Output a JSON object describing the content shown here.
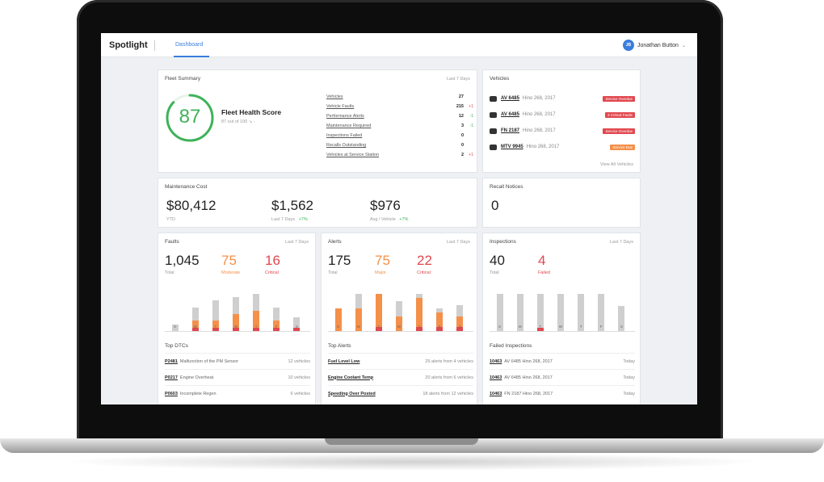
{
  "header": {
    "brand": "Spotlight",
    "tab_dashboard": "Dashboard",
    "user_initials": "JB",
    "user_name": "Jonathan Button"
  },
  "fleet_summary": {
    "title": "Fleet Summary",
    "period": "Last 7 Days",
    "score": "87",
    "score_fraction": 0.87,
    "score_title": "Fleet Health Score",
    "score_sub": "87 out of 100 ↘ -",
    "stats": [
      {
        "label": "Vehicles",
        "value": "27",
        "delta": ""
      },
      {
        "label": "Vehicle Faults",
        "value": "215",
        "delta": "+1"
      },
      {
        "label": "Performance Alerts",
        "value": "12",
        "delta": "-1"
      },
      {
        "label": "Maintenance Required",
        "value": "3",
        "delta": "-1"
      },
      {
        "label": "Inspections Failed",
        "value": "0",
        "delta": ""
      },
      {
        "label": "Recalls Outstanding",
        "value": "0",
        "delta": ""
      },
      {
        "label": "Vehicles at Service Station",
        "value": "2",
        "delta": "+1"
      }
    ]
  },
  "vehicles": {
    "title": "Vehicles",
    "view_all": "View All Vehicles",
    "items": [
      {
        "id": "AV 6485",
        "model": "Hino 268, 2017",
        "status": "Service Overdue",
        "color": "#e0484f"
      },
      {
        "id": "AV 6485",
        "model": "Hino 268, 2017",
        "status": "3 Critical Faults",
        "color": "#e0484f"
      },
      {
        "id": "FN 2187",
        "model": "Hino 268, 2017",
        "status": "Service Overdue",
        "color": "#e0484f"
      },
      {
        "id": "MTV 9945",
        "model": "Hino 268, 2017",
        "status": "Service Due",
        "color": "#f5904a"
      }
    ]
  },
  "maintenance": {
    "title": "Maintenance Cost",
    "ytd_value": "$80,412",
    "ytd_label": "YTD",
    "week_value": "$1,562",
    "week_label": "Last 7 Days",
    "week_delta": "+7%",
    "per_vehicle_value": "$976",
    "per_vehicle_label": "Avg / Vehicle",
    "per_vehicle_delta": "+7%"
  },
  "recalls": {
    "title": "Recall Notices",
    "value": "0"
  },
  "faults": {
    "title": "Faults",
    "period": "Last 7 Days",
    "total": "1,045",
    "total_label": "Total",
    "moderate": "75",
    "moderate_label": "Moderate",
    "critical": "16",
    "critical_label": "Critical",
    "list_title": "Top DTCs",
    "list": [
      {
        "code": "P2481",
        "desc": "Malfunction of the PM Sensor",
        "meta": "12 vehicles"
      },
      {
        "code": "P0217",
        "desc": "Engine Overheat",
        "meta": "10 vehicles"
      },
      {
        "code": "P0603",
        "desc": "Incomplete Regen",
        "meta": "6 vehicles"
      }
    ]
  },
  "alerts": {
    "title": "Alerts",
    "period": "Last 7 Days",
    "total": "175",
    "total_label": "Total",
    "major": "75",
    "major_label": "Major",
    "critical": "22",
    "critical_label": "Critical",
    "list_title": "Top Alerts",
    "list": [
      {
        "code": "Fuel Level Low",
        "desc": "",
        "meta": "25 alerts from 4 vehicles"
      },
      {
        "code": "Engine Coolant Temp",
        "desc": "",
        "meta": "20 alerts from 6 vehicles"
      },
      {
        "code": "Speeding Over Posted",
        "desc": "",
        "meta": "18 alerts from 12 vehicles"
      }
    ]
  },
  "inspections": {
    "title": "Inspections",
    "period": "Last 7 Days",
    "total": "40",
    "total_label": "Total",
    "failed": "4",
    "failed_label": "Failed",
    "list_title": "Failed Inspections",
    "list": [
      {
        "code": "10463",
        "desc": "AV 6485  Hino 268, 2017",
        "meta": "Today"
      },
      {
        "code": "10463",
        "desc": "AV 6485  Hino 268, 2017",
        "meta": "Today"
      },
      {
        "code": "10463",
        "desc": "FN 2187  Hino 268, 2017",
        "meta": "Today"
      }
    ]
  },
  "chart_data": [
    {
      "type": "bar",
      "title": "Faults",
      "categories": [
        "S",
        "M",
        "T",
        "W",
        "T",
        "F",
        "S"
      ],
      "series": [
        {
          "name": "Critical",
          "values": [
            0,
            1,
            1,
            1,
            1,
            1,
            1
          ]
        },
        {
          "name": "Moderate",
          "values": [
            0,
            2,
            2,
            4,
            5,
            2,
            0
          ]
        },
        {
          "name": "",
          "values": [
            2,
            4,
            6,
            5,
            5,
            4,
            3
          ]
        }
      ]
    },
    {
      "type": "bar",
      "title": "Alerts",
      "categories": [
        "S",
        "M",
        "T",
        "W",
        "T",
        "F",
        "S"
      ],
      "series": [
        {
          "name": "Critical",
          "values": [
            0,
            0,
            1,
            0,
            1,
            1,
            1
          ]
        },
        {
          "name": "Major",
          "values": [
            6,
            6,
            9,
            4,
            8,
            4,
            3
          ]
        },
        {
          "name": "",
          "values": [
            0,
            4,
            0,
            4,
            1,
            1,
            3
          ]
        }
      ]
    },
    {
      "type": "bar",
      "title": "Inspections",
      "categories": [
        "S",
        "M",
        "T",
        "W",
        "T",
        "F",
        "S"
      ],
      "series": [
        {
          "name": "Failed",
          "values": [
            0,
            0,
            1,
            0,
            0,
            0,
            0
          ]
        },
        {
          "name": "",
          "values": [
            12,
            12,
            11,
            12,
            12,
            12,
            8
          ]
        }
      ]
    }
  ]
}
